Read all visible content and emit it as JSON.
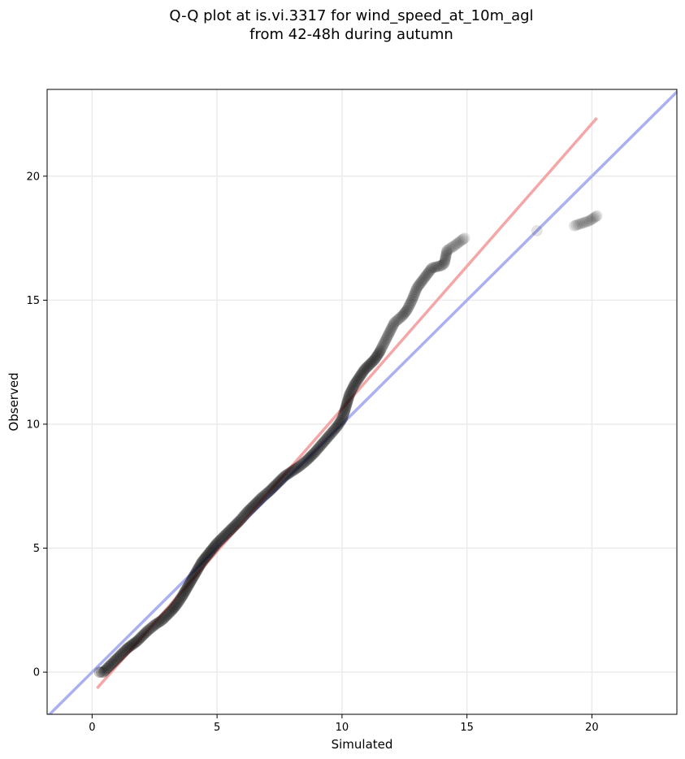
{
  "chart_data": {
    "type": "scatter",
    "title": [
      "Q-Q plot at is.vi.3317 for wind_speed_at_10m_agl",
      "from 42-48h during autumn"
    ],
    "xlabel": "Simulated",
    "ylabel": "Observed",
    "xlim": [
      -1.8,
      23.4
    ],
    "ylim": [
      -1.7,
      23.5
    ],
    "xticks": [
      0,
      5,
      10,
      15,
      20
    ],
    "yticks": [
      0,
      5,
      10,
      15,
      20
    ],
    "grid": true,
    "reference_line": {
      "name": "1:1 line",
      "color": "#aab0f0",
      "slope": 1,
      "intercept": 0
    },
    "fit_line": {
      "color": "#f4a7a7",
      "x": [
        0.2,
        20.2
      ],
      "y": [
        -0.65,
        22.35
      ]
    },
    "series": [
      {
        "marker_color": "#000000",
        "points": [
          [
            0.3,
            0.0
          ],
          [
            0.45,
            0.0
          ],
          [
            0.6,
            0.15
          ],
          [
            0.8,
            0.35
          ],
          [
            1.0,
            0.55
          ],
          [
            1.2,
            0.75
          ],
          [
            1.4,
            0.95
          ],
          [
            1.6,
            1.1
          ],
          [
            1.8,
            1.25
          ],
          [
            2.0,
            1.45
          ],
          [
            2.2,
            1.65
          ],
          [
            2.5,
            1.9
          ],
          [
            2.8,
            2.1
          ],
          [
            3.0,
            2.3
          ],
          [
            3.2,
            2.5
          ],
          [
            3.4,
            2.75
          ],
          [
            3.6,
            3.05
          ],
          [
            3.8,
            3.4
          ],
          [
            4.0,
            3.75
          ],
          [
            4.2,
            4.1
          ],
          [
            4.4,
            4.45
          ],
          [
            4.6,
            4.7
          ],
          [
            4.8,
            4.95
          ],
          [
            5.0,
            5.2
          ],
          [
            5.3,
            5.5
          ],
          [
            5.6,
            5.8
          ],
          [
            5.9,
            6.1
          ],
          [
            6.2,
            6.45
          ],
          [
            6.5,
            6.75
          ],
          [
            6.8,
            7.05
          ],
          [
            7.1,
            7.3
          ],
          [
            7.4,
            7.6
          ],
          [
            7.7,
            7.9
          ],
          [
            8.0,
            8.1
          ],
          [
            8.3,
            8.3
          ],
          [
            8.6,
            8.55
          ],
          [
            8.9,
            8.85
          ],
          [
            9.2,
            9.2
          ],
          [
            9.5,
            9.55
          ],
          [
            9.8,
            9.9
          ],
          [
            10.0,
            10.2
          ],
          [
            10.1,
            10.5
          ],
          [
            10.2,
            10.85
          ],
          [
            10.3,
            11.2
          ],
          [
            10.5,
            11.6
          ],
          [
            10.7,
            11.9
          ],
          [
            10.9,
            12.2
          ],
          [
            11.1,
            12.4
          ],
          [
            11.3,
            12.6
          ],
          [
            11.5,
            12.9
          ],
          [
            11.7,
            13.3
          ],
          [
            11.9,
            13.7
          ],
          [
            12.1,
            14.1
          ],
          [
            12.4,
            14.35
          ],
          [
            12.6,
            14.6
          ],
          [
            12.8,
            15.0
          ],
          [
            13.0,
            15.5
          ],
          [
            13.3,
            15.9
          ],
          [
            13.6,
            16.3
          ],
          [
            14.0,
            16.4
          ],
          [
            14.1,
            16.5
          ],
          [
            14.2,
            17.0
          ],
          [
            14.5,
            17.2
          ],
          [
            14.9,
            17.5
          ],
          [
            17.8,
            17.8
          ],
          [
            19.3,
            18.0
          ],
          [
            19.9,
            18.2
          ],
          [
            20.2,
            18.4
          ]
        ]
      }
    ]
  }
}
